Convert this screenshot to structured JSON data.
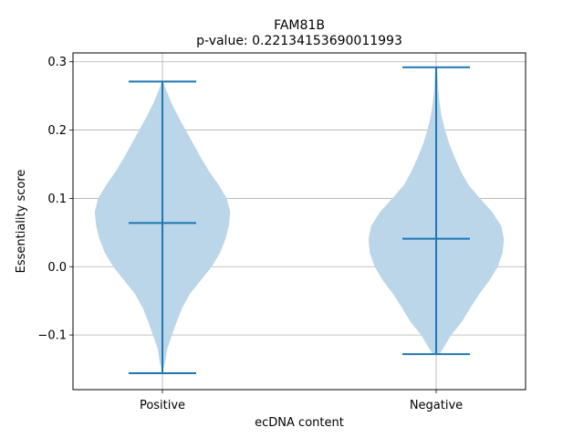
{
  "chart_data": {
    "type": "violin",
    "title": "FAM81B",
    "subtitle": "p-value: 0.22134153690011993",
    "xlabel": "ecDNA content",
    "ylabel": "Essentiality score",
    "categories": [
      "Positive",
      "Negative"
    ],
    "ylim": [
      -0.18,
      0.313
    ],
    "yticks": [
      -0.1,
      0.0,
      0.1,
      0.2,
      0.3
    ],
    "ytick_labels": [
      "−0.1",
      "0.0",
      "0.1",
      "0.2",
      "0.3"
    ],
    "grid": true,
    "colors": {
      "body": "#bcd6e9",
      "lines": "#1f77b4"
    },
    "violins": [
      {
        "category": "Positive",
        "min": -0.156,
        "max": 0.271,
        "median": 0.064,
        "profile": [
          [
            -0.156,
            0.01
          ],
          [
            -0.15,
            0.015
          ],
          [
            -0.14,
            0.04
          ],
          [
            -0.12,
            0.07
          ],
          [
            -0.1,
            0.14
          ],
          [
            -0.08,
            0.21
          ],
          [
            -0.06,
            0.29
          ],
          [
            -0.04,
            0.4
          ],
          [
            -0.02,
            0.56
          ],
          [
            0.0,
            0.72
          ],
          [
            0.02,
            0.84
          ],
          [
            0.04,
            0.92
          ],
          [
            0.06,
            0.97
          ],
          [
            0.08,
            0.99
          ],
          [
            0.1,
            0.94
          ],
          [
            0.12,
            0.82
          ],
          [
            0.14,
            0.68
          ],
          [
            0.16,
            0.56
          ],
          [
            0.18,
            0.45
          ],
          [
            0.2,
            0.34
          ],
          [
            0.22,
            0.23
          ],
          [
            0.24,
            0.13
          ],
          [
            0.26,
            0.05
          ],
          [
            0.271,
            0.01
          ]
        ]
      },
      {
        "category": "Negative",
        "min": -0.128,
        "max": 0.292,
        "median": 0.041,
        "profile": [
          [
            -0.128,
            0.05
          ],
          [
            -0.12,
            0.1
          ],
          [
            -0.1,
            0.22
          ],
          [
            -0.08,
            0.38
          ],
          [
            -0.06,
            0.5
          ],
          [
            -0.04,
            0.63
          ],
          [
            -0.02,
            0.78
          ],
          [
            0.0,
            0.9
          ],
          [
            0.02,
            0.97
          ],
          [
            0.04,
            0.99
          ],
          [
            0.06,
            0.95
          ],
          [
            0.08,
            0.82
          ],
          [
            0.1,
            0.64
          ],
          [
            0.12,
            0.47
          ],
          [
            0.14,
            0.36
          ],
          [
            0.16,
            0.27
          ],
          [
            0.18,
            0.19
          ],
          [
            0.2,
            0.13
          ],
          [
            0.22,
            0.08
          ],
          [
            0.24,
            0.05
          ],
          [
            0.26,
            0.03
          ],
          [
            0.28,
            0.02
          ],
          [
            0.292,
            0.01
          ]
        ]
      }
    ]
  }
}
